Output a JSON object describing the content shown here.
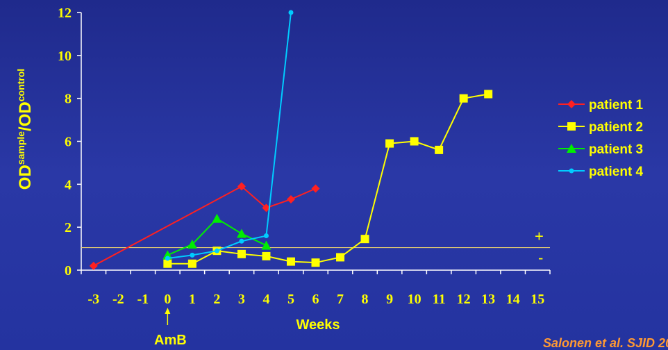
{
  "chart_data": {
    "type": "line",
    "xlabel": "Weeks",
    "ylabel_main": "OD",
    "ylabel_sup1": "sample",
    "ylabel_mid": "/OD",
    "ylabel_sup2": "control",
    "xlim": [
      -3.5,
      15.5
    ],
    "ylim": [
      0,
      12
    ],
    "x_ticks": [
      -3,
      -2,
      -1,
      0,
      1,
      2,
      3,
      4,
      5,
      6,
      7,
      8,
      9,
      10,
      11,
      12,
      13,
      14,
      15
    ],
    "y_ticks": [
      0,
      2,
      4,
      6,
      8,
      10,
      12
    ],
    "threshold": 1.05,
    "threshold_labels": {
      "above": "+",
      "below": "-"
    },
    "legend_position": "right",
    "series": [
      {
        "name": "patient 1",
        "color": "#ff2020",
        "marker": "diamond",
        "x": [
          -3,
          3,
          4,
          5,
          6
        ],
        "y": [
          0.2,
          3.9,
          2.9,
          3.3,
          3.8
        ]
      },
      {
        "name": "patient 2",
        "color": "#ffff00",
        "marker": "square",
        "x": [
          0,
          1,
          2,
          3,
          4,
          5,
          6,
          7,
          8,
          9,
          10,
          11,
          12,
          13
        ],
        "y": [
          0.3,
          0.3,
          0.9,
          0.75,
          0.65,
          0.4,
          0.35,
          0.6,
          1.45,
          5.9,
          6.0,
          5.6,
          8.0,
          8.2
        ]
      },
      {
        "name": "patient 3",
        "color": "#00ee00",
        "marker": "triangle",
        "x": [
          0,
          1,
          2,
          3,
          4
        ],
        "y": [
          0.7,
          1.2,
          2.4,
          1.7,
          1.15
        ]
      },
      {
        "name": "patient 4",
        "color": "#00ccff",
        "marker": "circle",
        "x": [
          0,
          1,
          2,
          3,
          4,
          5
        ],
        "y": [
          0.55,
          0.7,
          0.9,
          1.35,
          1.6,
          12.0
        ]
      }
    ],
    "annotation": {
      "label": "AmB",
      "x": 0
    }
  },
  "citation": "Salonen et al. SJID 20"
}
